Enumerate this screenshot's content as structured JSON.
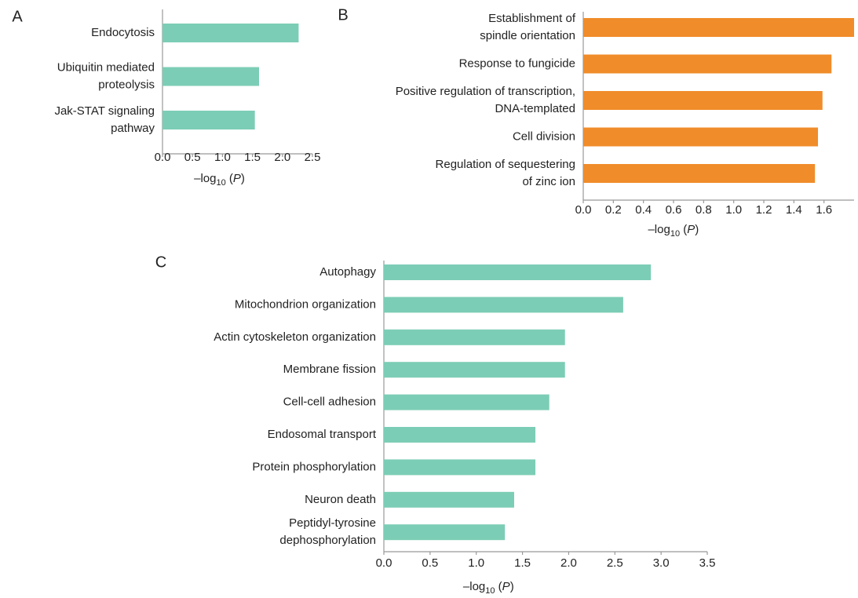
{
  "chart_data": [
    {
      "type": "bar",
      "orientation": "horizontal",
      "panel_label": "A",
      "categories": [
        [
          "Endocytosis"
        ],
        [
          "Ubiquitin mediated",
          "proteolysis"
        ],
        [
          "Jak-STAT signaling",
          "pathway"
        ]
      ],
      "values": [
        2.27,
        1.61,
        1.54
      ],
      "color": "#7ccdb5",
      "xlim": [
        0,
        2.5
      ],
      "xticks": [
        {
          "value": 0,
          "label": "0.0"
        },
        0.5,
        {
          "value": 1,
          "label": "1.0"
        },
        1.5,
        {
          "value": 2,
          "label": "2.0"
        },
        2.5
      ],
      "x_label": [
        "–log",
        "10",
        " (",
        "P",
        ")"
      ]
    },
    {
      "type": "bar",
      "orientation": "horizontal",
      "panel_label": "B",
      "categories": [
        [
          "Establishment of",
          "spindle orientation"
        ],
        [
          "Response to fungicide"
        ],
        [
          "Positive regulation of transcription,",
          "DNA-templated"
        ],
        [
          "Cell division"
        ],
        [
          "Regulation of sequestering",
          "of zinc ion"
        ]
      ],
      "values": [
        1.8,
        1.65,
        1.59,
        1.56,
        1.54
      ],
      "color": "#f08c2a",
      "xlim": [
        0,
        1.8
      ],
      "xticks": [
        {
          "value": 0,
          "label": "0.0"
        },
        0.2,
        0.4,
        0.6,
        0.8,
        {
          "value": 1,
          "label": "1.0"
        },
        1.2,
        1.4,
        1.6
      ],
      "x_label": [
        "–log",
        "10",
        " (",
        "P",
        ")"
      ]
    },
    {
      "type": "bar",
      "orientation": "horizontal",
      "panel_label": "C",
      "categories": [
        [
          "Autophagy"
        ],
        [
          "Mitochondrion organization"
        ],
        [
          "Actin cytoskeleton organization"
        ],
        [
          "Membrane fission"
        ],
        [
          "Cell-cell adhesion"
        ],
        [
          "Endosomal transport"
        ],
        [
          "Protein phosphorylation"
        ],
        [
          "Neuron death"
        ],
        [
          "Peptidyl-tyrosine",
          "dephosphorylation"
        ]
      ],
      "values": [
        2.89,
        2.59,
        1.96,
        1.96,
        1.79,
        1.64,
        1.64,
        1.41,
        1.31
      ],
      "color": "#7ccdb5",
      "xlim": [
        0,
        3.5
      ],
      "xticks": [
        {
          "value": 0,
          "label": "0.0"
        },
        0.5,
        {
          "value": 1,
          "label": "1.0"
        },
        1.5,
        {
          "value": 2,
          "label": "2.0"
        },
        2.5,
        {
          "value": 3,
          "label": "3.0"
        },
        3.5
      ],
      "x_label": [
        "–log",
        "10",
        " (",
        "P",
        ")"
      ]
    }
  ]
}
